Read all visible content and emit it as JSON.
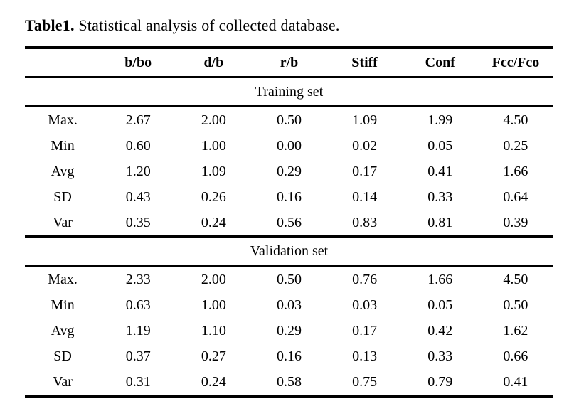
{
  "page": {
    "background_color": "#ffffff",
    "text_color": "#000000"
  },
  "caption": {
    "label": "Table1.",
    "text": "Statistical analysis of collected database."
  },
  "table": {
    "columns": [
      "",
      "b/bo",
      "d/b",
      "r/b",
      "Stiff",
      "Conf",
      "Fcc/Fco"
    ],
    "sections": [
      {
        "name": "Training set",
        "rows": [
          {
            "label": "Max.",
            "values": [
              "2.67",
              "2.00",
              "0.50",
              "1.09",
              "1.99",
              "4.50"
            ]
          },
          {
            "label": "Min",
            "values": [
              "0.60",
              "1.00",
              "0.00",
              "0.02",
              "0.05",
              "0.25"
            ]
          },
          {
            "label": "Avg",
            "values": [
              "1.20",
              "1.09",
              "0.29",
              "0.17",
              "0.41",
              "1.66"
            ]
          },
          {
            "label": "SD",
            "values": [
              "0.43",
              "0.26",
              "0.16",
              "0.14",
              "0.33",
              "0.64"
            ]
          },
          {
            "label": "Var",
            "values": [
              "0.35",
              "0.24",
              "0.56",
              "0.83",
              "0.81",
              "0.39"
            ]
          }
        ]
      },
      {
        "name": "Validation set",
        "rows": [
          {
            "label": "Max.",
            "values": [
              "2.33",
              "2.00",
              "0.50",
              "0.76",
              "1.66",
              "4.50"
            ]
          },
          {
            "label": "Min",
            "values": [
              "0.63",
              "1.00",
              "0.03",
              "0.03",
              "0.05",
              "0.50"
            ]
          },
          {
            "label": "Avg",
            "values": [
              "1.19",
              "1.10",
              "0.29",
              "0.17",
              "0.42",
              "1.62"
            ]
          },
          {
            "label": "SD",
            "values": [
              "0.37",
              "0.27",
              "0.16",
              "0.13",
              "0.33",
              "0.66"
            ]
          },
          {
            "label": "Var",
            "values": [
              "0.31",
              "0.24",
              "0.58",
              "0.75",
              "0.79",
              "0.41"
            ]
          }
        ]
      }
    ]
  }
}
